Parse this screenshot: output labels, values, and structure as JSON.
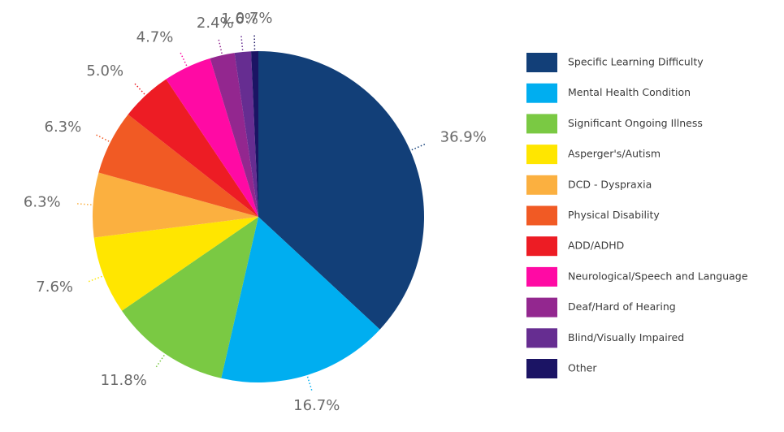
{
  "chart_data": {
    "type": "pie",
    "title": "",
    "legend_position": "right",
    "slices": [
      {
        "category": "Specific Learning Difficulty",
        "value": 36.9,
        "label": "36.9%",
        "color": "#123f78"
      },
      {
        "category": "Mental Health Condition",
        "value": 16.7,
        "label": "16.7%",
        "color": "#00aef0"
      },
      {
        "category": "Significant Ongoing Illness",
        "value": 11.8,
        "label": "11.8%",
        "color": "#7ac943"
      },
      {
        "category": "Asperger's/Autism",
        "value": 7.6,
        "label": "7.6%",
        "color": "#ffe600"
      },
      {
        "category": "DCD - Dyspraxia",
        "value": 6.3,
        "label": "6.3%",
        "color": "#fbb040"
      },
      {
        "category": "Physical Disability",
        "value": 6.3,
        "label": "6.3%",
        "color": "#f15a24"
      },
      {
        "category": "ADD/ADHD",
        "value": 5.0,
        "label": "5.0%",
        "color": "#ed1c24"
      },
      {
        "category": "Neurological/Speech and Language",
        "value": 4.7,
        "label": "4.7%",
        "color": "#ff0aa4"
      },
      {
        "category": "Deaf/Hard of Hearing",
        "value": 2.4,
        "label": "2.4%",
        "color": "#93278f"
      },
      {
        "category": "Blind/Visually Impaired",
        "value": 1.6,
        "label": "1.6%",
        "color": "#662d91"
      },
      {
        "category": "Other",
        "value": 0.7,
        "label": "0.7%",
        "color": "#1b1464"
      }
    ]
  }
}
